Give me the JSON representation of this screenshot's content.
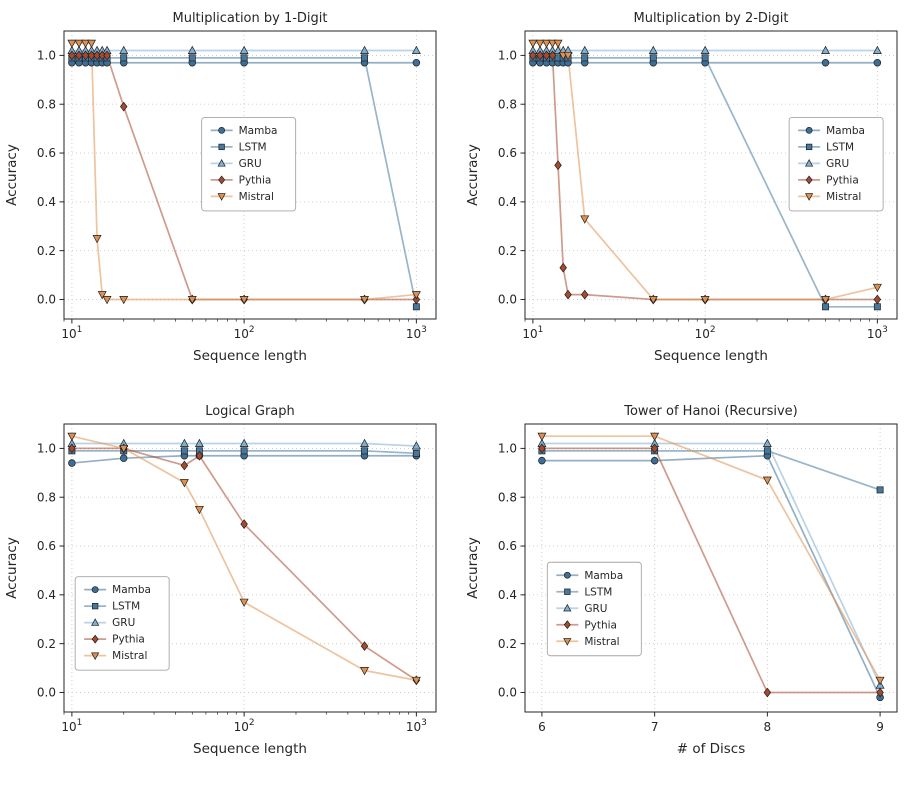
{
  "figure": {
    "background": "#ffffff"
  },
  "legend_labels": [
    "Mamba",
    "LSTM",
    "GRU",
    "Pythia",
    "Mistral"
  ],
  "chart_data": [
    {
      "type": "line",
      "title": "Multiplication by 1-Digit",
      "xlabel": "Sequence length",
      "ylabel": "Accuracy",
      "xscale": "log",
      "xlim": [
        9,
        1300
      ],
      "ylim": [
        -0.08,
        1.1
      ],
      "xticks": [
        10,
        100,
        1000
      ],
      "yticks": [
        0.0,
        0.2,
        0.4,
        0.6,
        0.8,
        1.0
      ],
      "grid": true,
      "legend": {
        "fx": 0.37,
        "fy": 0.3
      },
      "series": [
        {
          "name": "Mamba",
          "marker": "circle",
          "color": "#3d6e96",
          "x": [
            10,
            11,
            12,
            13,
            14,
            15,
            16,
            20,
            50,
            100,
            500,
            1000
          ],
          "y": [
            0.97,
            0.97,
            0.97,
            0.97,
            0.97,
            0.97,
            0.97,
            0.97,
            0.97,
            0.97,
            0.97,
            0.97
          ]
        },
        {
          "name": "LSTM",
          "marker": "square",
          "color": "#46789e",
          "x": [
            10,
            11,
            12,
            13,
            14,
            15,
            16,
            20,
            50,
            100,
            500,
            1000
          ],
          "y": [
            0.99,
            0.99,
            0.99,
            0.99,
            0.99,
            0.99,
            0.99,
            0.99,
            0.99,
            0.99,
            0.99,
            -0.03
          ]
        },
        {
          "name": "GRU",
          "marker": "triangle-up",
          "color": "#7fafd1",
          "x": [
            10,
            11,
            12,
            13,
            14,
            15,
            16,
            20,
            50,
            100,
            500,
            1000
          ],
          "y": [
            1.02,
            1.02,
            1.02,
            1.02,
            1.02,
            1.02,
            1.02,
            1.02,
            1.02,
            1.02,
            1.02,
            1.02
          ]
        },
        {
          "name": "Pythia",
          "marker": "diamond",
          "color": "#a8492e",
          "x": [
            10,
            11,
            12,
            13,
            14,
            15,
            16,
            20,
            50,
            100,
            500,
            1000
          ],
          "y": [
            1.0,
            1.0,
            1.0,
            1.0,
            1.0,
            1.0,
            1.0,
            0.79,
            0.0,
            0.0,
            0.0,
            0.0
          ]
        },
        {
          "name": "Mistral",
          "marker": "triangle-down",
          "color": "#e0914f",
          "x": [
            10,
            11,
            12,
            13,
            14,
            15,
            16,
            20,
            50,
            100,
            500,
            1000
          ],
          "y": [
            1.05,
            1.05,
            1.05,
            1.05,
            0.25,
            0.02,
            0.0,
            0.0,
            0.0,
            0.0,
            0.0,
            0.02
          ]
        }
      ]
    },
    {
      "type": "line",
      "title": "Multiplication by 2-Digit",
      "xlabel": "Sequence length",
      "ylabel": "Accuracy",
      "xscale": "log",
      "xlim": [
        9,
        1300
      ],
      "ylim": [
        -0.08,
        1.1
      ],
      "xticks": [
        10,
        100,
        1000
      ],
      "yticks": [
        0.0,
        0.2,
        0.4,
        0.6,
        0.8,
        1.0
      ],
      "grid": true,
      "legend": {
        "fx": 0.71,
        "fy": 0.3
      },
      "series": [
        {
          "name": "Mamba",
          "marker": "circle",
          "color": "#3d6e96",
          "x": [
            10,
            11,
            12,
            13,
            14,
            15,
            16,
            20,
            50,
            100,
            500,
            1000
          ],
          "y": [
            0.97,
            0.97,
            0.97,
            0.97,
            0.97,
            0.97,
            0.97,
            0.97,
            0.97,
            0.97,
            0.97,
            0.97
          ]
        },
        {
          "name": "LSTM",
          "marker": "square",
          "color": "#46789e",
          "x": [
            10,
            11,
            12,
            13,
            14,
            15,
            16,
            20,
            50,
            100,
            500,
            1000
          ],
          "y": [
            0.99,
            0.99,
            0.99,
            0.99,
            0.99,
            0.99,
            0.99,
            0.99,
            0.99,
            0.99,
            -0.03,
            -0.03
          ]
        },
        {
          "name": "GRU",
          "marker": "triangle-up",
          "color": "#7fafd1",
          "x": [
            10,
            11,
            12,
            13,
            14,
            15,
            16,
            20,
            50,
            100,
            500,
            1000
          ],
          "y": [
            1.02,
            1.02,
            1.02,
            1.02,
            1.02,
            1.02,
            1.02,
            1.02,
            1.02,
            1.02,
            1.02,
            1.02
          ]
        },
        {
          "name": "Pythia",
          "marker": "diamond",
          "color": "#a8492e",
          "x": [
            10,
            11,
            12,
            13,
            14,
            15,
            16,
            20,
            50,
            100,
            500,
            1000
          ],
          "y": [
            1.0,
            1.0,
            1.0,
            1.0,
            0.55,
            0.13,
            0.02,
            0.02,
            0.0,
            0.0,
            0.0,
            0.0
          ]
        },
        {
          "name": "Mistral",
          "marker": "triangle-down",
          "color": "#e0914f",
          "x": [
            10,
            11,
            12,
            13,
            14,
            15,
            16,
            20,
            50,
            100,
            500,
            1000
          ],
          "y": [
            1.05,
            1.05,
            1.05,
            1.05,
            1.05,
            1.0,
            1.0,
            0.33,
            0.0,
            0.0,
            0.0,
            0.05
          ]
        }
      ]
    },
    {
      "type": "line",
      "title": "Logical Graph",
      "xlabel": "Sequence length",
      "ylabel": "Accuracy",
      "xscale": "log",
      "xlim": [
        9,
        1300
      ],
      "ylim": [
        -0.08,
        1.1
      ],
      "xticks": [
        10,
        100,
        1000
      ],
      "yticks": [
        0.0,
        0.2,
        0.4,
        0.6,
        0.8,
        1.0
      ],
      "grid": true,
      "legend": {
        "fx": 0.03,
        "fy": 0.53
      },
      "series": [
        {
          "name": "Mamba",
          "marker": "circle",
          "color": "#3d6e96",
          "x": [
            10,
            20,
            45,
            55,
            100,
            500,
            1000
          ],
          "y": [
            0.94,
            0.96,
            0.97,
            0.97,
            0.97,
            0.97,
            0.97
          ]
        },
        {
          "name": "LSTM",
          "marker": "square",
          "color": "#46789e",
          "x": [
            10,
            20,
            45,
            55,
            100,
            500,
            1000
          ],
          "y": [
            0.99,
            0.99,
            0.99,
            0.99,
            0.99,
            0.99,
            0.98
          ]
        },
        {
          "name": "GRU",
          "marker": "triangle-up",
          "color": "#7fafd1",
          "x": [
            10,
            20,
            45,
            55,
            100,
            500,
            1000
          ],
          "y": [
            1.02,
            1.02,
            1.02,
            1.02,
            1.02,
            1.02,
            1.01
          ]
        },
        {
          "name": "Pythia",
          "marker": "diamond",
          "color": "#a8492e",
          "x": [
            10,
            20,
            45,
            55,
            100,
            500,
            1000
          ],
          "y": [
            1.0,
            1.0,
            0.93,
            0.97,
            0.69,
            0.19,
            0.05
          ]
        },
        {
          "name": "Mistral",
          "marker": "triangle-down",
          "color": "#e0914f",
          "x": [
            10,
            20,
            45,
            55,
            100,
            500,
            1000
          ],
          "y": [
            1.05,
            1.0,
            0.86,
            0.75,
            0.37,
            0.09,
            0.05
          ]
        }
      ]
    },
    {
      "type": "line",
      "title": "Tower of Hanoi (Recursive)",
      "xlabel": "# of Discs",
      "ylabel": "Accuracy",
      "xscale": "linear",
      "xlim": [
        5.85,
        9.15
      ],
      "ylim": [
        -0.08,
        1.1
      ],
      "xticks": [
        6,
        7,
        8,
        9
      ],
      "yticks": [
        0.0,
        0.2,
        0.4,
        0.6,
        0.8,
        1.0
      ],
      "grid": true,
      "legend": {
        "fx": 0.06,
        "fy": 0.48
      },
      "series": [
        {
          "name": "Mamba",
          "marker": "circle",
          "color": "#3d6e96",
          "x": [
            6,
            7,
            8,
            9
          ],
          "y": [
            0.95,
            0.95,
            0.97,
            -0.02
          ]
        },
        {
          "name": "LSTM",
          "marker": "square",
          "color": "#46789e",
          "x": [
            6,
            7,
            8,
            9
          ],
          "y": [
            0.99,
            0.99,
            0.99,
            0.83
          ]
        },
        {
          "name": "GRU",
          "marker": "triangle-up",
          "color": "#7fafd1",
          "x": [
            6,
            7,
            8,
            9
          ],
          "y": [
            1.02,
            1.02,
            1.02,
            0.03
          ]
        },
        {
          "name": "Pythia",
          "marker": "diamond",
          "color": "#a8492e",
          "x": [
            6,
            7,
            8,
            9
          ],
          "y": [
            1.0,
            1.0,
            0.0,
            0.0
          ]
        },
        {
          "name": "Mistral",
          "marker": "triangle-down",
          "color": "#e0914f",
          "x": [
            6,
            7,
            8,
            9
          ],
          "y": [
            1.05,
            1.05,
            0.87,
            0.05
          ]
        }
      ]
    }
  ]
}
